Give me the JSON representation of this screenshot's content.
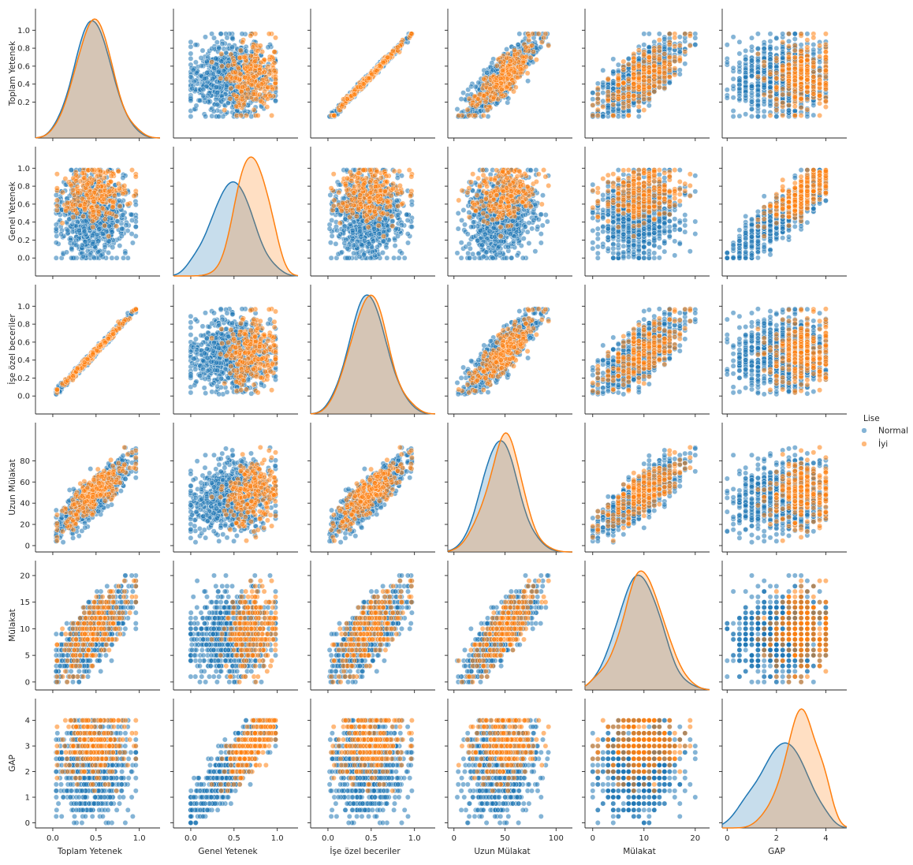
{
  "chart_data": {
    "type": "pairplot",
    "variables": [
      "Toplam Yetenek",
      "Genel Yetenek",
      "İşe özel beceriler",
      "Uzun Mülakat",
      "Mülakat",
      "GAP"
    ],
    "axis_ranges": {
      "Toplam Yetenek": [
        -0.2,
        1.24
      ],
      "Genel Yetenek": [
        -0.2,
        1.24
      ],
      "İşe özel beceriler": [
        -0.2,
        1.24
      ],
      "Uzun Mülakat": [
        -6,
        116
      ],
      "Mülakat": [
        -1.5,
        22.8
      ],
      "GAP": [
        -0.2,
        4.85
      ]
    },
    "ticks": {
      "Toplam Yetenek": {
        "bottom": [
          0.0,
          0.5,
          1.0
        ],
        "left": [
          0.2,
          0.4,
          0.6,
          0.8,
          1.0
        ],
        "left_labels": [
          "0.2",
          "0.4",
          "0.6",
          "0.8",
          "1.0"
        ],
        "bottom_labels": [
          "0.0",
          "0.5",
          "1.0"
        ]
      },
      "Genel Yetenek": {
        "bottom": [
          0.0,
          0.5,
          1.0
        ],
        "left": [
          0.0,
          0.2,
          0.4,
          0.6,
          0.8,
          1.0
        ],
        "left_labels": [
          "0.0",
          "0.2",
          "0.4",
          "0.6",
          "0.8",
          "1.0"
        ],
        "bottom_labels": [
          "0.0",
          "0.5",
          "1.0"
        ]
      },
      "İşe özel beceriler": {
        "bottom": [
          0.0,
          0.5,
          1.0
        ],
        "left": [
          0.0,
          0.2,
          0.4,
          0.6,
          0.8,
          1.0
        ],
        "left_labels": [
          "0.0",
          "0.2",
          "0.4",
          "0.6",
          "0.8",
          "1.0"
        ],
        "bottom_labels": [
          "0.0",
          "0.5",
          "1.0"
        ]
      },
      "Uzun Mülakat": {
        "bottom": [
          0,
          50,
          100
        ],
        "left": [
          0,
          20,
          40,
          60,
          80
        ],
        "left_labels": [
          "0",
          "20",
          "40",
          "60",
          "80"
        ],
        "bottom_labels": [
          "0",
          "50",
          "100"
        ]
      },
      "Mülakat": {
        "bottom": [
          0,
          10,
          20
        ],
        "left": [
          0,
          5,
          10,
          15,
          20
        ],
        "left_labels": [
          "0",
          "5",
          "10",
          "15",
          "20"
        ],
        "bottom_labels": [
          "0",
          "10",
          "20"
        ]
      },
      "GAP": {
        "bottom": [
          0,
          2,
          4
        ],
        "left": [
          0,
          1,
          2,
          3,
          4
        ],
        "left_labels": [
          "0",
          "1",
          "2",
          "3",
          "4"
        ],
        "bottom_labels": [
          "0",
          "2",
          "4"
        ]
      }
    },
    "hue": {
      "title": "Lise",
      "levels": [
        {
          "name": "Normal",
          "color": "#1f77b4"
        },
        {
          "name": "İyi",
          "color": "#ff7f0e"
        }
      ]
    },
    "diagonal": "kde",
    "offdiagonal": "scatter",
    "marker_alpha": 0.55,
    "kde_peaks": {
      "Toplam Yetenek": {
        "Normal": {
          "mode": 0.42,
          "shoulder": 0.7
        },
        "İyi": {
          "mode": 0.45
        }
      },
      "Genel Yetenek": {
        "Normal": {
          "mode": 0.5
        },
        "İyi": {
          "mode": 0.8
        }
      },
      "İşe özel beceriler": {
        "Normal": {
          "mode": 0.4,
          "shoulder": 0.7
        },
        "İyi": {
          "mode": 0.42
        }
      },
      "Uzun Mülakat": {
        "Normal": {
          "mode": 47
        },
        "İyi": {
          "mode": 55
        }
      },
      "Mülakat": {
        "Normal": {
          "mode": 10
        },
        "İyi": {
          "mode": 10
        }
      },
      "GAP": {
        "Normal": {
          "mode": 1.8
        },
        "İyi": {
          "mode": 2.7
        }
      }
    },
    "legend_placement": "right",
    "grid": false
  }
}
